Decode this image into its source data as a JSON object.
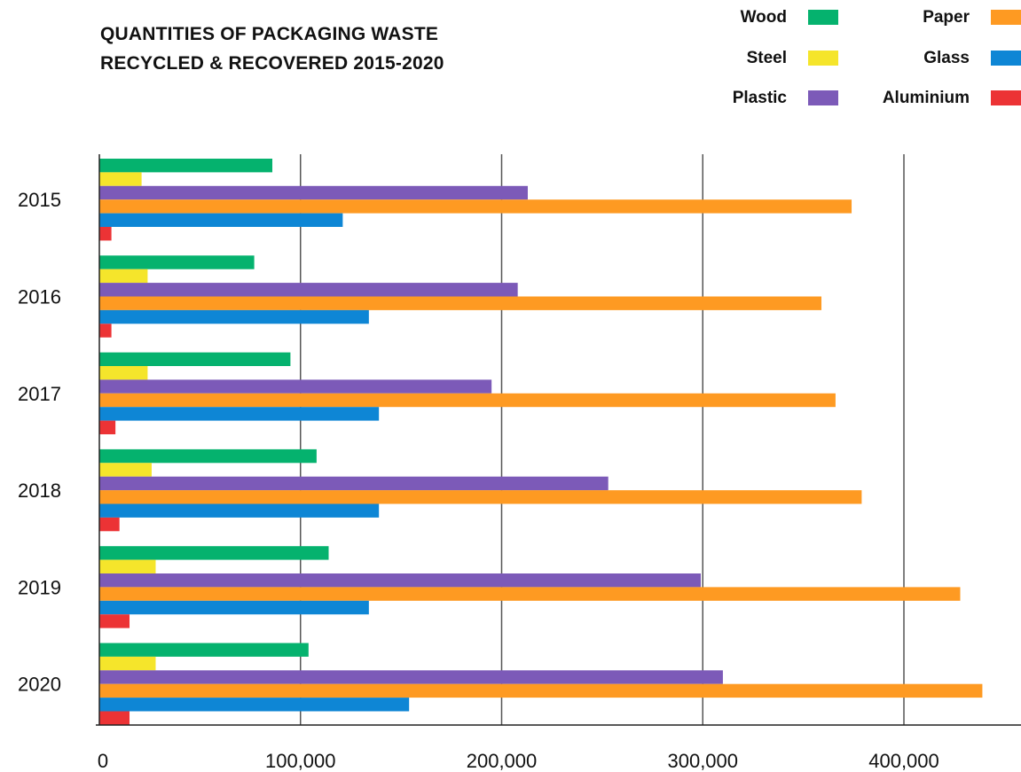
{
  "chart_data": {
    "type": "bar",
    "orientation": "horizontal",
    "title": "QUANTITIES OF PACKAGING WASTE RECYCLED & RECOVERED 2015-2020",
    "title_lines": [
      "QUANTITIES OF PACKAGING WASTE",
      "RECYCLED & RECOVERED 2015-2020"
    ],
    "xlabel": "",
    "ylabel": "",
    "categories": [
      "2015",
      "2016",
      "2017",
      "2018",
      "2019",
      "2020"
    ],
    "xlim": [
      0,
      460000
    ],
    "x_ticks": [
      0,
      100000,
      200000,
      300000,
      400000
    ],
    "x_tick_labels": [
      "0",
      "100,000",
      "200,000",
      "300,000",
      "400,000"
    ],
    "grid": "vertical",
    "legend_position": "top-right",
    "series": [
      {
        "name": "Wood",
        "color": "#05b26e",
        "values": [
          86000,
          77000,
          95000,
          108000,
          114000,
          104000
        ]
      },
      {
        "name": "Steel",
        "color": "#f5e52b",
        "values": [
          21000,
          24000,
          24000,
          26000,
          28000,
          28000
        ]
      },
      {
        "name": "Plastic",
        "color": "#7c5ab8",
        "values": [
          213000,
          208000,
          195000,
          253000,
          299000,
          310000
        ]
      },
      {
        "name": "Paper",
        "color": "#fe9a22",
        "values": [
          374000,
          359000,
          366000,
          379000,
          428000,
          439000
        ]
      },
      {
        "name": "Glass",
        "color": "#0e86d5",
        "values": [
          121000,
          134000,
          139000,
          139000,
          134000,
          154000
        ]
      },
      {
        "name": "Aluminium",
        "color": "#ec3335",
        "values": [
          6000,
          6000,
          8000,
          10000,
          15000,
          15000
        ]
      }
    ]
  },
  "legend": {
    "wood": "Wood",
    "steel": "Steel",
    "plastic": "Plastic",
    "paper": "Paper",
    "glass": "Glass",
    "aluminium": "Aluminium"
  }
}
